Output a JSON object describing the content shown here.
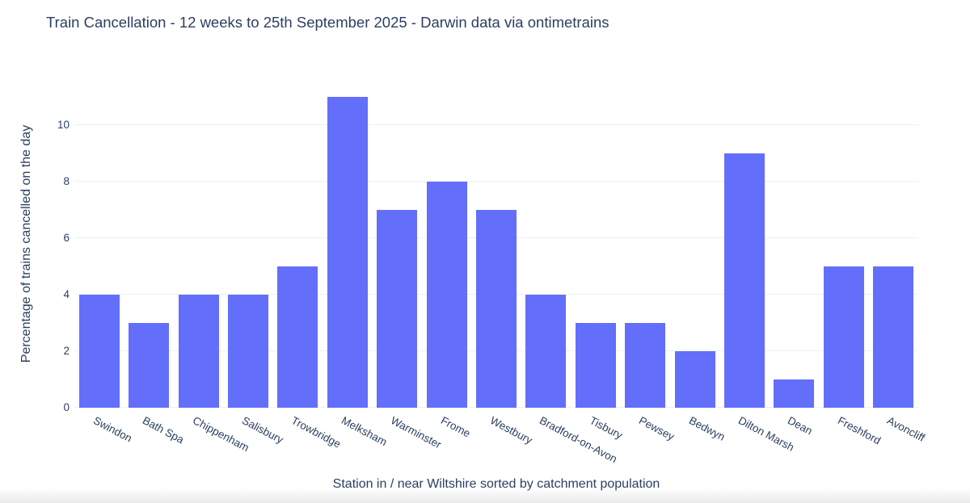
{
  "chart_data": {
    "type": "bar",
    "title": "Train Cancellation - 12 weeks to 25th September 2025 - Darwin data via ontimetrains",
    "xlabel": "Station in / near Wiltshire sorted by catchment population",
    "ylabel": "Percentage of trains cancelled on the day",
    "categories": [
      "Swindon",
      "Bath Spa",
      "Chippenham",
      "Salisbury",
      "Trowbridge",
      "Melksham",
      "Warminster",
      "Frome",
      "Westbury",
      "Bradford-on-Avon",
      "Tisbury",
      "Pewsey",
      "Bedwyn",
      "Dilton Marsh",
      "Dean",
      "Freshford",
      "Avoncliff"
    ],
    "values": [
      4,
      3,
      4,
      4,
      5,
      11,
      7,
      8,
      7,
      4,
      3,
      3,
      2,
      9,
      1,
      5,
      5
    ],
    "yticks": [
      0,
      2,
      4,
      6,
      8,
      10
    ],
    "ylim": [
      0,
      11.57
    ],
    "grid": true,
    "legend_position": "none",
    "xtick_angle_deg": 28,
    "colors": {
      "bar": "#636efa",
      "text": "#2a3f5f",
      "grid": "#ebf0f8",
      "background": "#ffffff"
    }
  }
}
